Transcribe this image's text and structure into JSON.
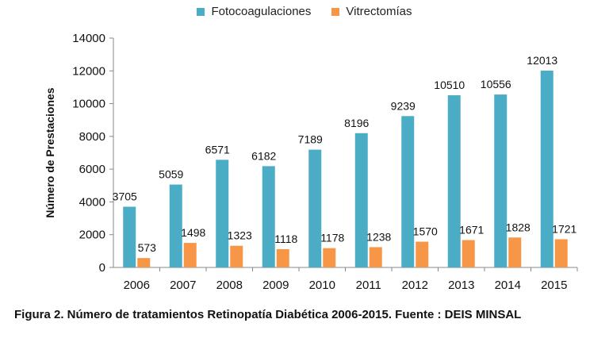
{
  "colors": {
    "fotocoagulaciones": "#4bacc6",
    "vitrectomias": "#f79646",
    "axis": "#888888",
    "text": "#111111"
  },
  "caption": "Figura 2. Número de tratamientos Retinopatía Diabética 2006-2015. Fuente : DEIS MINSAL",
  "chart_data": {
    "type": "bar",
    "title": "",
    "xlabel": "",
    "ylabel": "Número de Prestaciones",
    "ylim": [
      0,
      14000
    ],
    "yticks": [
      0,
      2000,
      4000,
      6000,
      8000,
      10000,
      12000,
      14000
    ],
    "grid": false,
    "legend_position": "top-center",
    "categories": [
      "2006",
      "2007",
      "2008",
      "2009",
      "2010",
      "2011",
      "2012",
      "2013",
      "2014",
      "2015"
    ],
    "series": [
      {
        "name": "Fotocoagulaciones",
        "values": [
          3705,
          5059,
          6571,
          6182,
          7189,
          8196,
          9239,
          10510,
          10556,
          12013
        ]
      },
      {
        "name": "Vitrectomías",
        "values": [
          573,
          1498,
          1323,
          1118,
          1178,
          1238,
          1570,
          1671,
          1828,
          1721
        ]
      }
    ]
  }
}
